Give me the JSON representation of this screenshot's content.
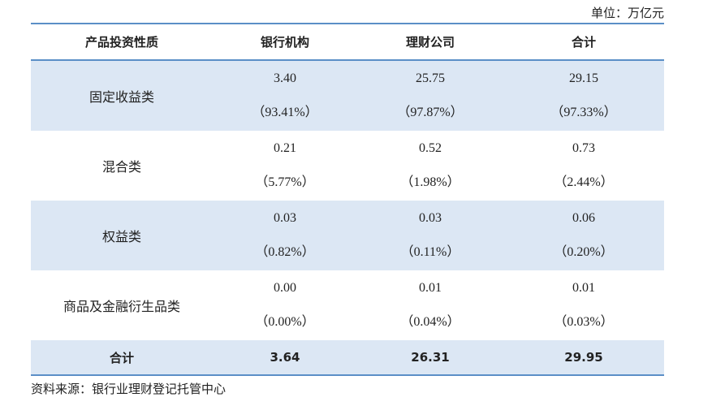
{
  "header": {
    "unit": "单位：万亿元"
  },
  "table": {
    "columns": [
      "产品投资性质",
      "银行机构",
      "理财公司",
      "合计"
    ],
    "rows": [
      {
        "label": "固定收益类",
        "cells": [
          {
            "value": "3.40",
            "share": "（93.41%）"
          },
          {
            "value": "25.75",
            "share": "（97.87%）"
          },
          {
            "value": "29.15",
            "share": "（97.33%）"
          }
        ]
      },
      {
        "label": "混合类",
        "cells": [
          {
            "value": "0.21",
            "share": "（5.77%）"
          },
          {
            "value": "0.52",
            "share": "（1.98%）"
          },
          {
            "value": "0.73",
            "share": "（2.44%）"
          }
        ]
      },
      {
        "label": "权益类",
        "cells": [
          {
            "value": "0.03",
            "share": "（0.82%）"
          },
          {
            "value": "0.03",
            "share": "（0.11%）"
          },
          {
            "value": "0.06",
            "share": "（0.20%）"
          }
        ]
      },
      {
        "label": "商品及金融衍生品类",
        "cells": [
          {
            "value": "0.00",
            "share": "（0.00%）"
          },
          {
            "value": "0.01",
            "share": "（0.04%）"
          },
          {
            "value": "0.01",
            "share": "（0.03%）"
          }
        ]
      }
    ],
    "total": {
      "label": "合计",
      "values": [
        "3.64",
        "26.31",
        "29.95"
      ]
    }
  },
  "footer": {
    "source": "资料来源：银行业理财登记托管中心"
  }
}
